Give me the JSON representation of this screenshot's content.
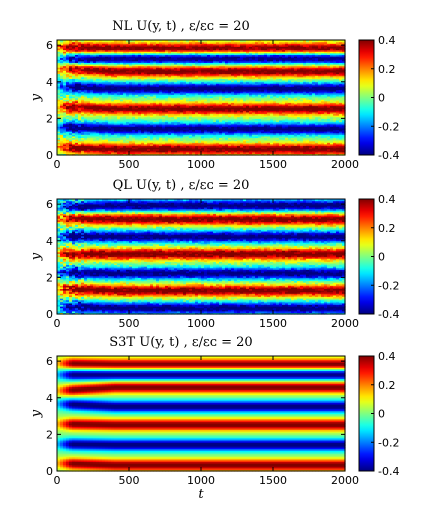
{
  "chart_data": [
    {
      "type": "heatmap",
      "panel": "NL",
      "title": "NL    U(y, t)   ,  ε/ε_c = 20",
      "ylabel": "y",
      "xlabel": "",
      "xlim": [
        0,
        2000
      ],
      "ylim": [
        0,
        6.28
      ],
      "x_ticks": [
        "0",
        "500",
        "1000",
        "1500",
        "2000"
      ],
      "y_ticks": [
        "0",
        "2",
        "4",
        "6"
      ],
      "colorbar_ticks": [
        "0.4",
        "0.2",
        "0",
        "-0.2",
        "-0.4"
      ],
      "clim": [
        -0.4,
        0.4
      ],
      "colormap": "jet",
      "jets": [
        {
          "y_start": 0.45,
          "y_end": 0.35,
          "sign": 1
        },
        {
          "y_start": 1.55,
          "y_end": 1.45,
          "sign": -1
        },
        {
          "y_start": 2.65,
          "y_end": 2.55,
          "sign": 1
        },
        {
          "y_start": 3.75,
          "y_end": 3.65,
          "sign": -1
        },
        {
          "y_start": 4.8,
          "y_end": 4.6,
          "sign": 1
        },
        {
          "y_start": 5.2,
          "y_end": 5.3,
          "sign": -1
        },
        {
          "y_start": 5.9,
          "y_end": 5.85,
          "sign": 1
        }
      ],
      "noise": 0.14,
      "front_noise": 0.06
    },
    {
      "type": "heatmap",
      "panel": "QL",
      "title": "QL    U(y, t)   ,  ε/ε_c = 20",
      "ylabel": "y",
      "xlabel": "",
      "xlim": [
        0,
        2000
      ],
      "ylim": [
        0,
        6.28
      ],
      "x_ticks": [
        "0",
        "500",
        "1000",
        "1500",
        "2000"
      ],
      "y_ticks": [
        "0",
        "2",
        "4",
        "6"
      ],
      "colorbar_ticks": [
        "0.4",
        "0.2",
        "0",
        "-0.2",
        "-0.4"
      ],
      "clim": [
        -0.4,
        0.4
      ],
      "colormap": "jet",
      "jets": [
        {
          "y_start": 0.45,
          "y_end": 0.35,
          "sign": -1
        },
        {
          "y_start": 1.4,
          "y_end": 1.3,
          "sign": 1
        },
        {
          "y_start": 2.3,
          "y_end": 2.25,
          "sign": -1
        },
        {
          "y_start": 3.3,
          "y_end": 3.3,
          "sign": 1
        },
        {
          "y_start": 4.3,
          "y_end": 4.25,
          "sign": -1
        },
        {
          "y_start": 5.25,
          "y_end": 5.2,
          "sign": 1
        },
        {
          "y_start": 5.85,
          "y_end": 5.95,
          "sign": -1
        }
      ],
      "noise": 0.16,
      "front_noise": 0.08
    },
    {
      "type": "heatmap",
      "panel": "S3T",
      "title": "S3T    U(y, t)   ,  ε/ε_c = 20",
      "ylabel": "y",
      "xlabel": "t",
      "xlim": [
        0,
        2000
      ],
      "ylim": [
        0,
        6.28
      ],
      "x_ticks": [
        "0",
        "500",
        "1000",
        "1500",
        "2000"
      ],
      "y_ticks": [
        "0",
        "2",
        "4",
        "6"
      ],
      "colorbar_ticks": [
        "0.4",
        "0.2",
        "0",
        "-0.2",
        "-0.4"
      ],
      "clim": [
        -0.4,
        0.4
      ],
      "colormap": "jet",
      "jets": [
        {
          "y_start": 0.45,
          "y_end": 0.35,
          "sign": 1
        },
        {
          "y_start": 1.5,
          "y_end": 1.45,
          "sign": -1
        },
        {
          "y_start": 2.6,
          "y_end": 2.55,
          "sign": 1
        },
        {
          "y_start": 3.7,
          "y_end": 3.55,
          "sign": -1
        },
        {
          "y_start": 4.4,
          "y_end": 4.6,
          "sign": 1
        },
        {
          "y_start": 5.3,
          "y_end": 5.3,
          "sign": -1
        },
        {
          "y_start": 5.9,
          "y_end": 5.85,
          "sign": 1
        }
      ],
      "noise": 0.0,
      "front_noise": 0.0
    }
  ]
}
